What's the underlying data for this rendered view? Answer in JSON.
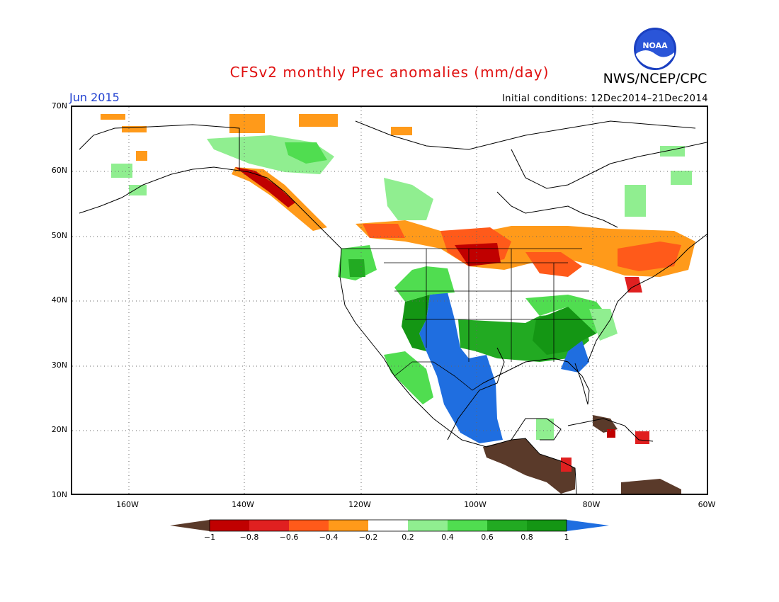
{
  "header": {
    "title": "CFSv2 monthly Prec anomalies (mm/day)",
    "agency": "NWS/NCEP/CPC",
    "logo_text": "NOAA",
    "month": "Jun 2015",
    "initial_conditions": "Initial conditions: 12Dec2014–21Dec2014"
  },
  "axes": {
    "lat_labels": [
      "70N",
      "60N",
      "50N",
      "40N",
      "30N",
      "20N",
      "10N"
    ],
    "lon_labels": [
      "160W",
      "140W",
      "120W",
      "100W",
      "80W",
      "60W"
    ]
  },
  "colorbar": {
    "labels": [
      "−1",
      "−0.8",
      "−0.6",
      "−0.4",
      "−0.2",
      "0.2",
      "0.4",
      "0.6",
      "0.8",
      "1"
    ],
    "colors": [
      "#5a3a2a",
      "#c00000",
      "#e02020",
      "#ff5a1a",
      "#ff9a1a",
      "#ffffff",
      "#90ee90",
      "#50dd50",
      "#22aa22",
      "#149614",
      "#1f6ee0"
    ]
  }
}
